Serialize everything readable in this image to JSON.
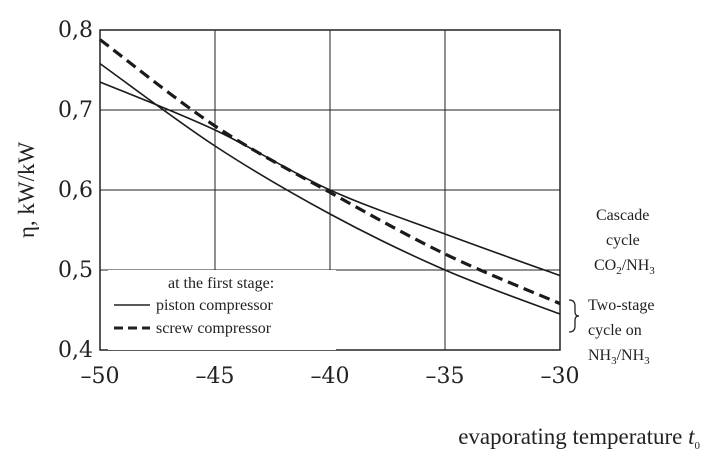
{
  "chart_data": {
    "type": "line",
    "title": "",
    "xlabel": "evaporating temperature",
    "xlabel_symbol": "t",
    "xlabel_sub": "0",
    "ylabel": "η, kW/kW",
    "xlim": [
      -50,
      -30
    ],
    "ylim": [
      0.4,
      0.8
    ],
    "grid": true,
    "x_ticks": [
      -50,
      -45,
      -40,
      -35,
      -30
    ],
    "x_tick_labels": [
      "–50",
      "–45",
      "–40",
      "–35",
      "–30"
    ],
    "y_ticks": [
      0.4,
      0.5,
      0.6,
      0.7,
      0.8
    ],
    "y_tick_labels": [
      "0,4",
      "0,5",
      "0,6",
      "0,7",
      "0,8"
    ],
    "legend": {
      "placement": "bottom-left",
      "title": "at the first stage:",
      "entries": [
        {
          "label": "piston compressor",
          "style": "solid"
        },
        {
          "label": "screw compressor",
          "style": "dashed"
        }
      ]
    },
    "series": [
      {
        "id": "cascade-piston",
        "style": "solid",
        "x": [
          -50,
          -45,
          -40,
          -35,
          -30
        ],
        "y": [
          0.735,
          0.675,
          0.6,
          0.545,
          0.493
        ]
      },
      {
        "id": "twostage-piston",
        "style": "solid",
        "x": [
          -50,
          -45,
          -40,
          -35,
          -30
        ],
        "y": [
          0.758,
          0.655,
          0.57,
          0.5,
          0.445
        ]
      },
      {
        "id": "twostage-screw",
        "style": "dashed",
        "x": [
          -50,
          -45,
          -40,
          -35,
          -30
        ],
        "y": [
          0.788,
          0.68,
          0.597,
          0.52,
          0.458
        ]
      }
    ],
    "annotations": {
      "cascade": {
        "lines": [
          "Cascade",
          "cycle"
        ],
        "formula": [
          "CO",
          "2",
          "/NH",
          "3",
          ""
        ]
      },
      "twostage": {
        "lines": [
          "Two-stage",
          "cycle on"
        ],
        "formula": [
          "NH",
          "3",
          "/NH",
          "3",
          ""
        ]
      }
    }
  }
}
